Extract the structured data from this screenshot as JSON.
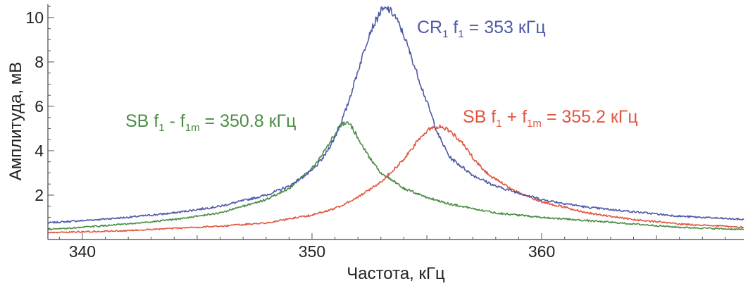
{
  "chart_data": {
    "type": "line",
    "xlabel": "Частота, кГц",
    "ylabel": "Амплитуда, мВ",
    "xlim": [
      338.5,
      368.8
    ],
    "ylim": [
      0,
      10.6
    ],
    "xticks": [
      340,
      350,
      360
    ],
    "yticks": [
      2,
      4,
      6,
      8,
      10
    ],
    "grid": false,
    "series": [
      {
        "name": "CR1",
        "color": "#4f5aa8",
        "annotation": {
          "main": "CR",
          "sub1": "1",
          "rest": " f",
          "sub2": "1",
          "tail": " = 353 кГц"
        },
        "x": [
          338.5,
          340,
          342,
          344,
          346,
          348,
          349,
          350,
          350.5,
          351,
          351.5,
          352,
          352.5,
          353,
          353.3,
          353.6,
          354,
          354.5,
          355,
          355.5,
          356,
          357,
          358,
          359,
          360,
          362,
          364,
          366,
          368.8
        ],
        "y": [
          0.75,
          0.85,
          1.0,
          1.2,
          1.5,
          2.0,
          2.4,
          3.1,
          3.7,
          4.6,
          5.9,
          7.6,
          9.3,
          10.3,
          10.4,
          10.1,
          9.2,
          7.7,
          6.2,
          4.7,
          3.7,
          2.9,
          2.4,
          2.1,
          1.8,
          1.45,
          1.25,
          1.05,
          0.9
        ]
      },
      {
        "name": "SB f1 - f1m",
        "color": "#4c8d45",
        "annotation": {
          "main": "SB f",
          "sub1": "1",
          "rest": " - f",
          "sub2": "1m",
          "tail": " = 350.8 кГц"
        },
        "x": [
          338.5,
          340,
          342,
          344,
          346,
          348,
          349,
          350,
          350.5,
          351,
          351.3,
          351.6,
          352,
          352.5,
          353,
          354,
          355,
          356,
          357,
          358,
          360,
          362,
          364,
          366,
          368.8
        ],
        "y": [
          0.45,
          0.55,
          0.7,
          0.9,
          1.2,
          1.8,
          2.3,
          3.2,
          3.9,
          4.8,
          5.2,
          5.3,
          4.6,
          3.7,
          3.0,
          2.3,
          1.9,
          1.6,
          1.4,
          1.2,
          1.0,
          0.85,
          0.7,
          0.55,
          0.45
        ]
      },
      {
        "name": "SB f1 + f1m",
        "color": "#e2553f",
        "annotation": {
          "main": "SB f",
          "sub1": "1",
          "rest": " + f",
          "sub2": "1m",
          "tail": " = 355.2 кГц"
        },
        "x": [
          338.5,
          340,
          342,
          344,
          346,
          348,
          350,
          351,
          352,
          353,
          354,
          354.5,
          355,
          355.3,
          355.6,
          356,
          356.5,
          357,
          357.5,
          358,
          359,
          360,
          362,
          364,
          366,
          368.8
        ],
        "y": [
          0.3,
          0.35,
          0.4,
          0.5,
          0.6,
          0.75,
          1.1,
          1.4,
          1.9,
          2.6,
          3.6,
          4.3,
          4.9,
          5.05,
          5.1,
          4.9,
          4.4,
          3.7,
          3.1,
          2.7,
          2.1,
          1.7,
          1.2,
          0.9,
          0.7,
          0.55
        ]
      }
    ]
  }
}
